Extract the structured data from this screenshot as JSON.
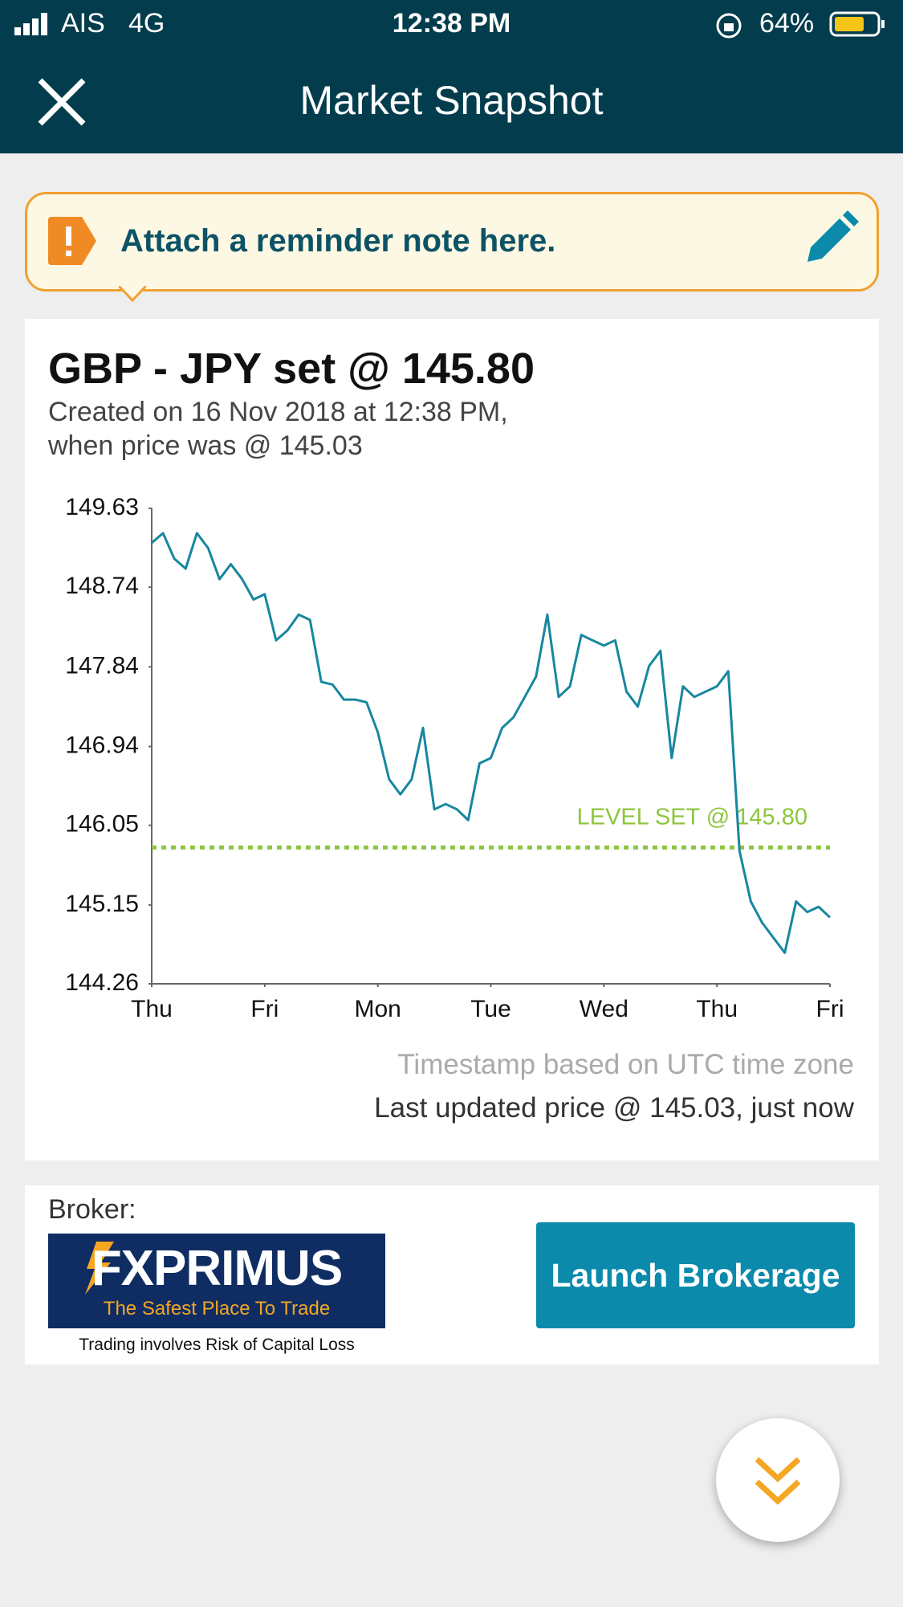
{
  "status_bar": {
    "carrier": "AIS",
    "network": "4G",
    "time": "12:38 PM",
    "battery": "64%"
  },
  "header": {
    "title": "Market Snapshot"
  },
  "note": {
    "text": "Attach a reminder note here."
  },
  "alert": {
    "title": "GBP - JPY set @ 145.80",
    "subtitle_line1": "Created on 16 Nov 2018 at 12:38 PM,",
    "subtitle_line2": "when price was @ 145.03"
  },
  "chart_data": {
    "type": "line",
    "x": [
      0,
      0.1,
      0.2,
      0.3,
      0.4,
      0.5,
      0.6,
      0.7,
      0.8,
      0.9,
      1,
      1.1,
      1.2,
      1.3,
      1.4,
      1.5,
      1.6,
      1.7,
      1.8,
      1.9,
      2,
      2.1,
      2.2,
      2.3,
      2.4,
      2.5,
      2.6,
      2.7,
      2.8,
      2.9,
      3,
      3.1,
      3.2,
      3.3,
      3.4,
      3.5,
      3.6,
      3.7,
      3.8,
      3.9,
      4,
      4.1,
      4.2,
      4.3,
      4.4,
      4.5,
      4.6,
      4.7,
      4.8,
      4.9,
      5,
      5.1,
      5.2,
      5.3,
      5.4,
      5.5,
      5.6,
      5.7,
      5.8,
      5.9,
      6
    ],
    "values": [
      149.24,
      149.35,
      149.06,
      148.95,
      149.35,
      149.18,
      148.83,
      149.0,
      148.83,
      148.6,
      148.66,
      148.14,
      148.25,
      148.43,
      148.37,
      147.67,
      147.64,
      147.47,
      147.47,
      147.44,
      147.1,
      146.57,
      146.4,
      146.57,
      147.15,
      146.23,
      146.29,
      146.23,
      146.11,
      146.75,
      146.81,
      147.15,
      147.27,
      147.5,
      147.73,
      148.43,
      147.5,
      147.62,
      148.2,
      148.14,
      148.08,
      148.14,
      147.56,
      147.39,
      147.85,
      148.02,
      146.81,
      147.62,
      147.5,
      147.56,
      147.62,
      147.79,
      145.76,
      145.19,
      144.95,
      144.78,
      144.61,
      145.19,
      145.07,
      145.13,
      145.01
    ],
    "color": "#17879f",
    "xlim": [
      0,
      6
    ],
    "xticks": [
      {
        "value": 0,
        "label": "Thu"
      },
      {
        "value": 1,
        "label": "Fri"
      },
      {
        "value": 2,
        "label": "Mon"
      },
      {
        "value": 3,
        "label": "Tue"
      },
      {
        "value": 4,
        "label": "Wed"
      },
      {
        "value": 5,
        "label": "Thu"
      },
      {
        "value": 6,
        "label": "Fri"
      }
    ],
    "ylim": [
      144.26,
      149.63
    ],
    "yticks": [
      144.26,
      145.15,
      146.05,
      146.94,
      147.84,
      148.74,
      149.63
    ],
    "level": {
      "value": 145.8,
      "label": "LEVEL SET @ 145.80",
      "color": "#8cc63f"
    }
  },
  "footer": {
    "timezone_note": "Timestamp based on UTC time zone",
    "last_updated": "Last updated price @ 145.03, just now"
  },
  "broker": {
    "label": "Broker:",
    "logo_name": "FXPRIMUS",
    "logo_tagline": "The Safest Place To Trade",
    "risk_note": "Trading involves Risk of Capital Loss",
    "button": "Launch Brokerage"
  }
}
